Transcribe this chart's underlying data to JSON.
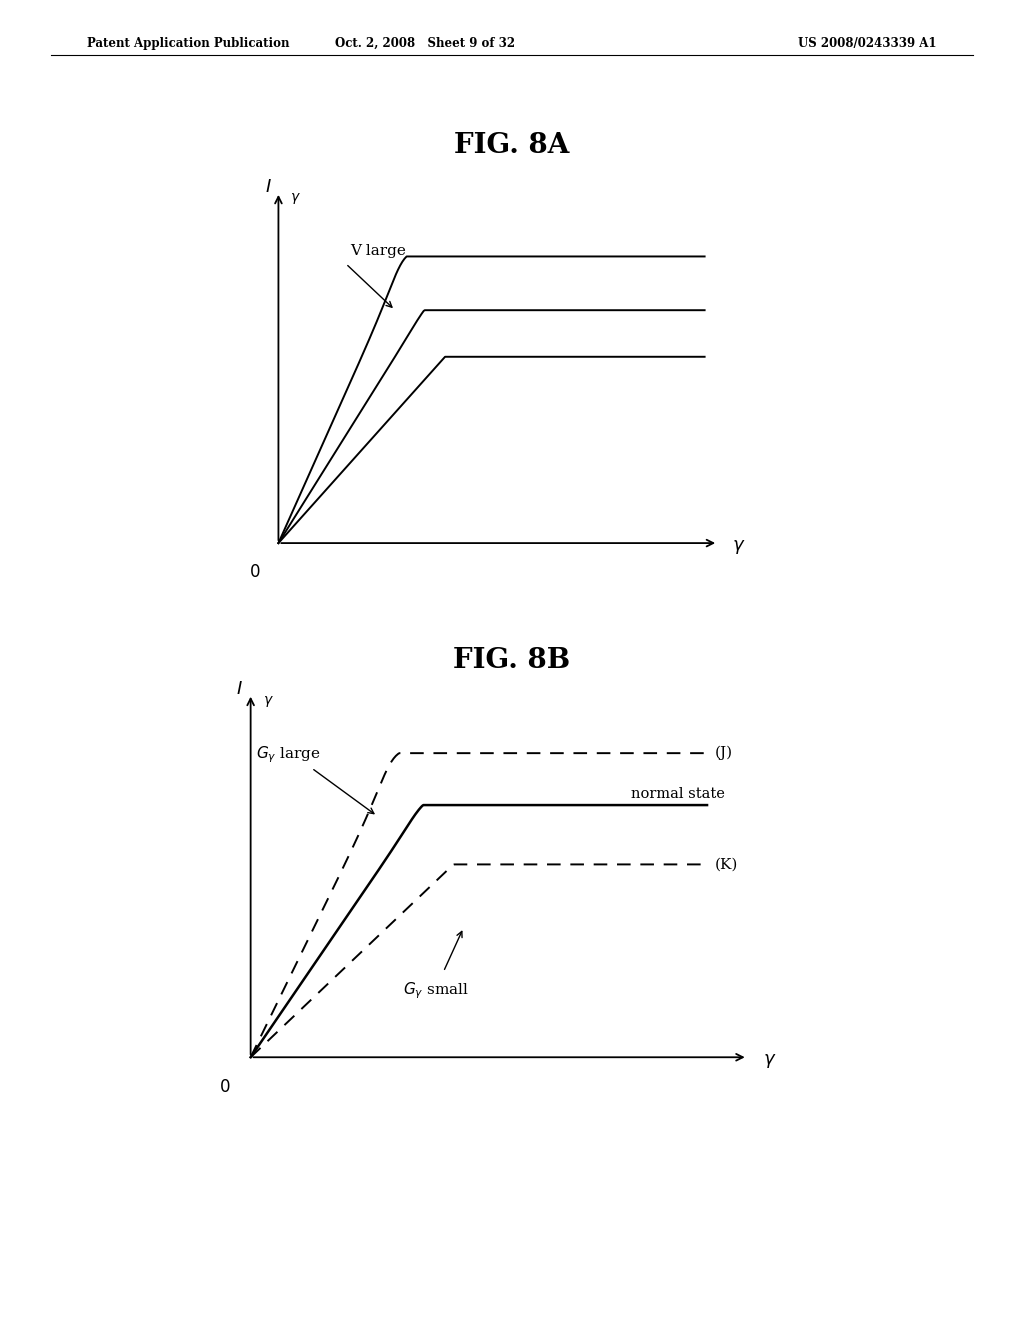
{
  "bg_color": "#ffffff",
  "text_color": "#000000",
  "header_left": "Patent Application Publication",
  "header_mid": "Oct. 2, 2008   Sheet 9 of 32",
  "header_right": "US 2008/0243339 A1",
  "fig8a_title": "FIG. 8A",
  "fig8b_title": "FIG. 8B",
  "fig8a_label_vlarge": "V large",
  "fig8b_label_J": "(J)",
  "fig8b_label_normal": "normal state",
  "fig8b_label_K": "(K)",
  "fig8b_label_glarge": "G",
  "fig8b_label_gsmall": "G"
}
